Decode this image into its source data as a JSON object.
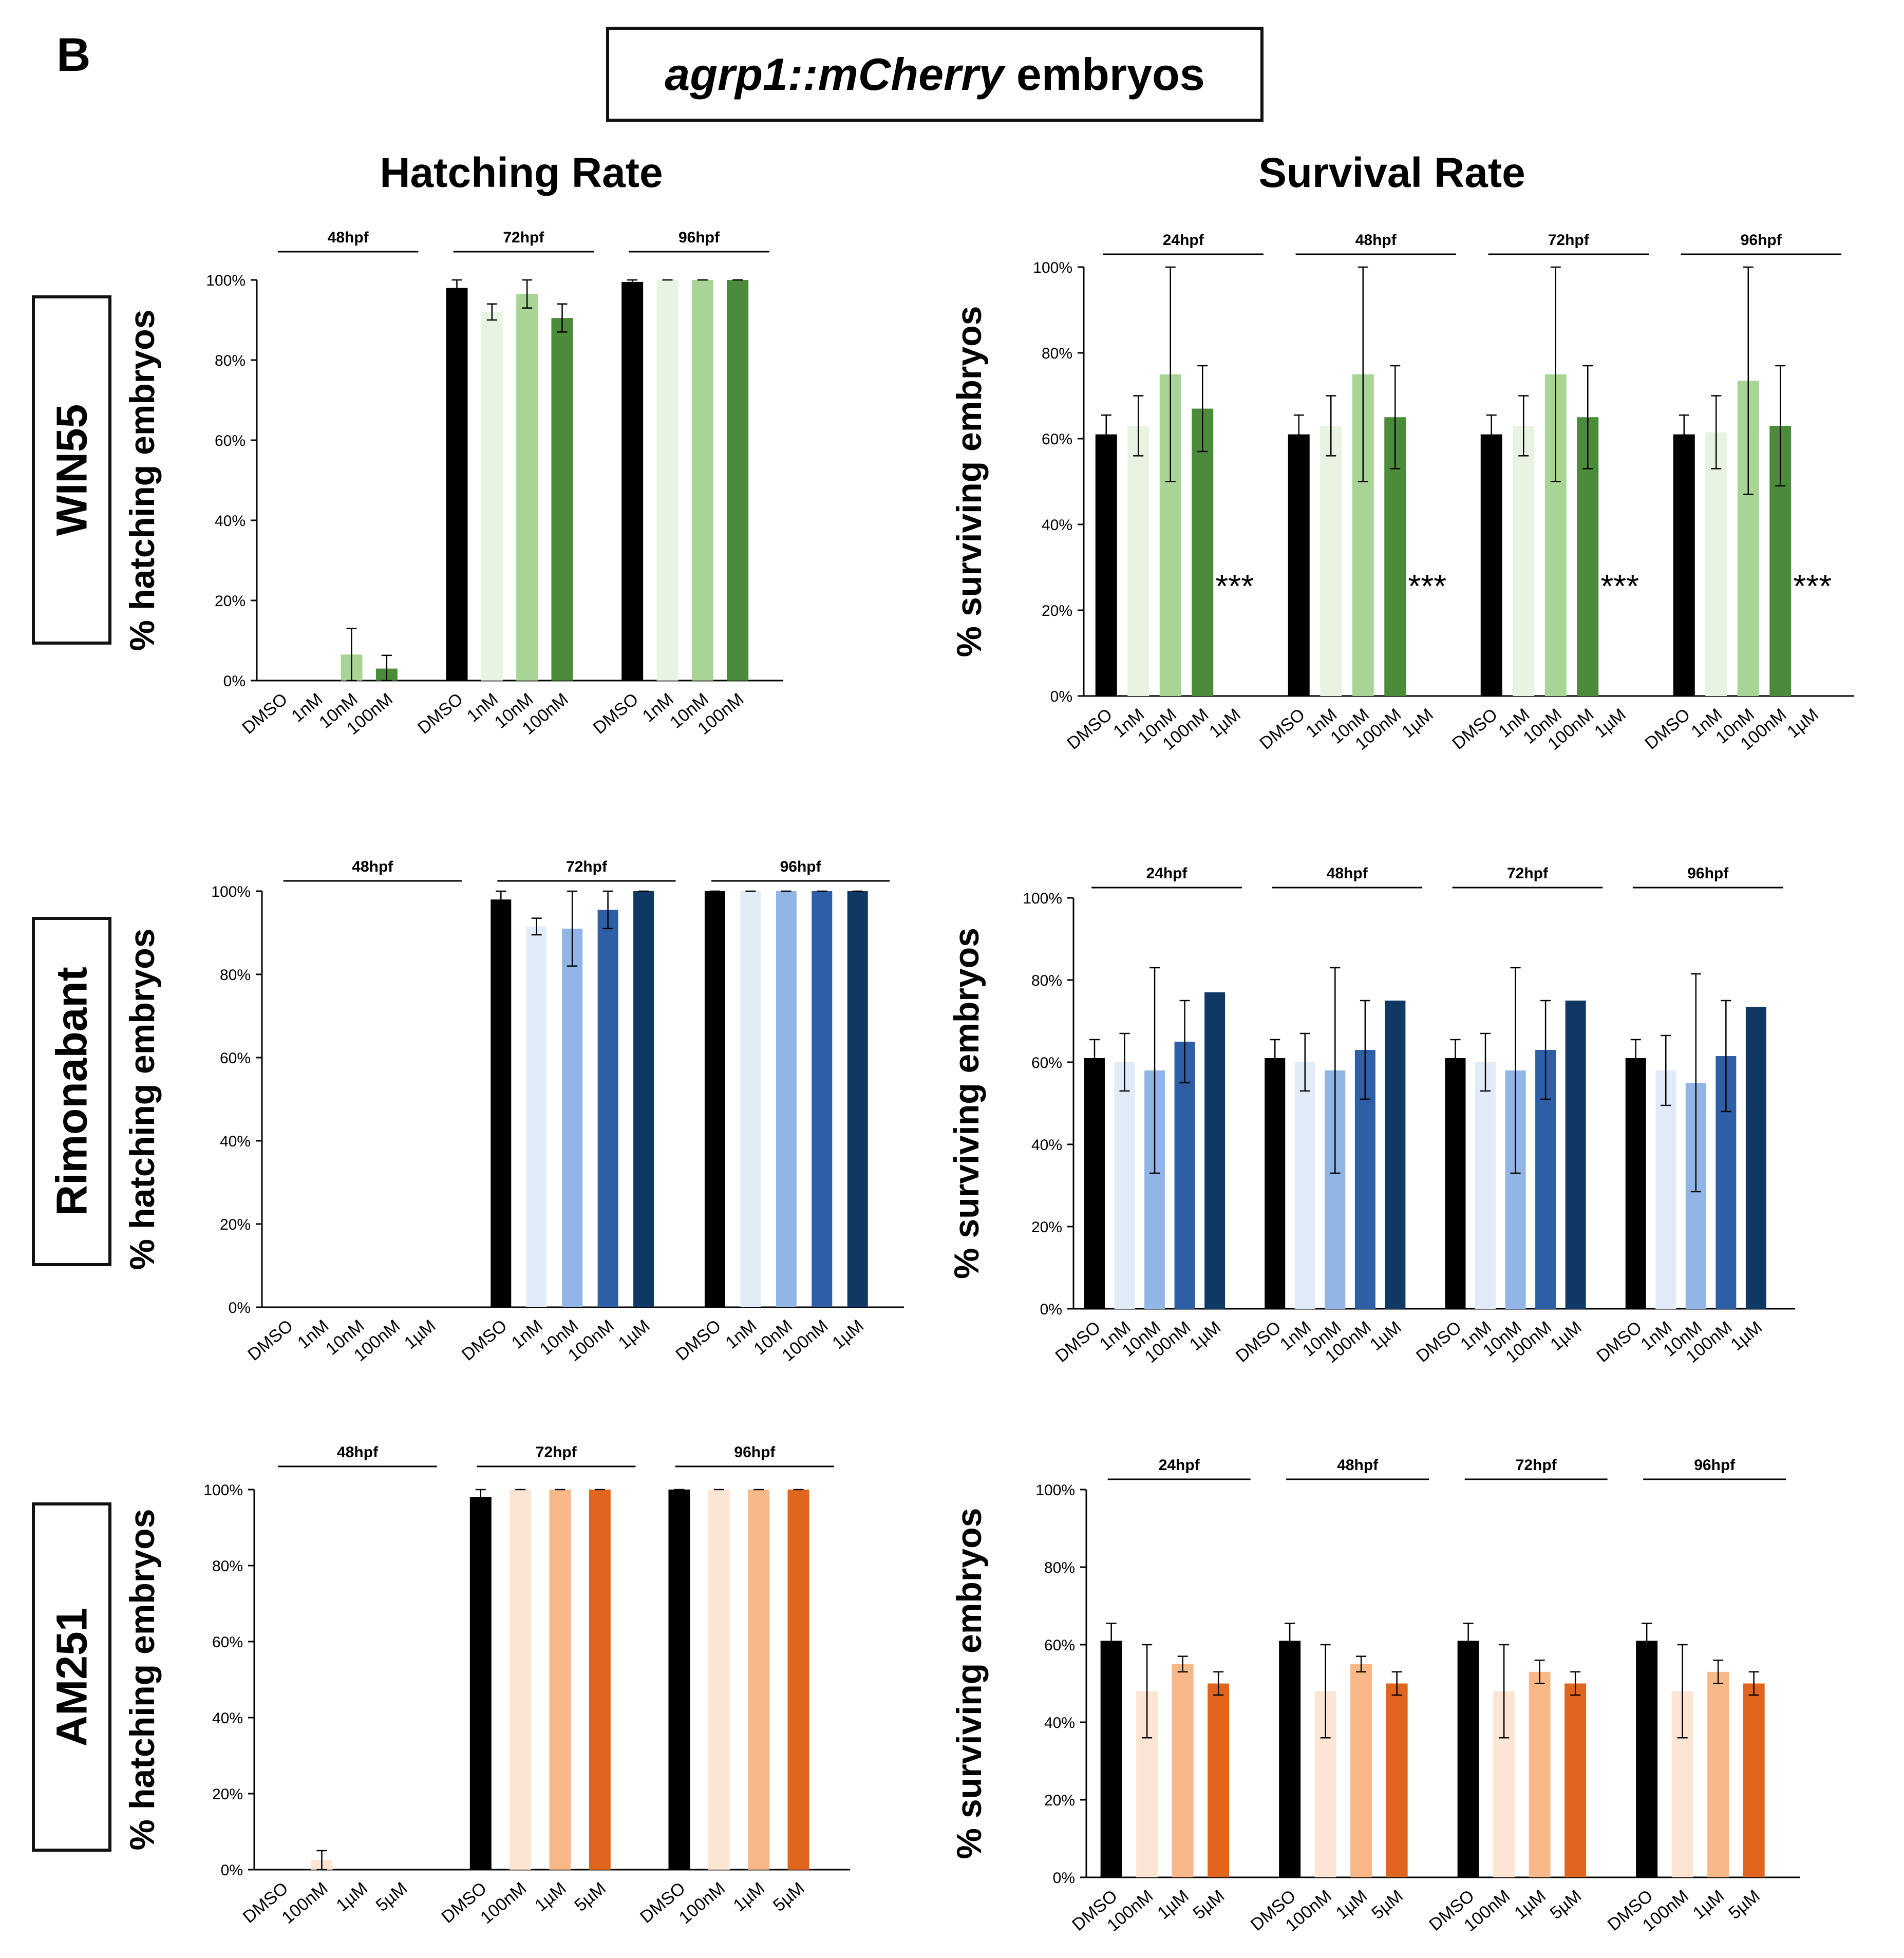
{
  "panel_letter": "B",
  "figure_title": {
    "italic": "agrp1::mCherry",
    "rest": " embryos"
  },
  "column_titles": {
    "hatching": "Hatching Rate",
    "survival": "Survival Rate"
  },
  "row_labels": {
    "win55": "WIN55",
    "rimonabant": "Rimonabant",
    "am251": "AM251"
  },
  "colors": {
    "control": "#000000",
    "green": [
      "#e8f3e2",
      "#a8d596",
      "#4c8a3c"
    ],
    "blue": [
      "#e2ebf8",
      "#91b5e4",
      "#2d5ea6",
      "#0f3865"
    ],
    "orange": [
      "#fde5d3",
      "#f8b887",
      "#e0661f"
    ]
  },
  "chart_data": [
    {
      "id": "win55-hatching",
      "type": "bar",
      "ylabel": "% hatching embryos",
      "ylim": [
        0,
        100
      ],
      "ytick_labels": [
        "0%",
        "20%",
        "40%",
        "60%",
        "80%",
        "100%"
      ],
      "categories": [
        "DMSO",
        "1nM",
        "10nM",
        "100nM"
      ],
      "groups": [
        {
          "label": "48hpf",
          "values": [
            0,
            0,
            6.5,
            3
          ],
          "errors": [
            0,
            0,
            6.5,
            3.3
          ]
        },
        {
          "label": "72hpf",
          "values": [
            98,
            92,
            96.5,
            90.5
          ],
          "errors": [
            2,
            2,
            3.5,
            3.5
          ]
        },
        {
          "label": "96hpf",
          "values": [
            99.5,
            100,
            100,
            100
          ],
          "errors": [
            0.5,
            0,
            0,
            0
          ]
        }
      ],
      "annotations": []
    },
    {
      "id": "win55-survival",
      "type": "bar",
      "ylabel": "% surviving embryos",
      "ylim": [
        0,
        100
      ],
      "ytick_labels": [
        "0%",
        "20%",
        "40%",
        "60%",
        "80%",
        "100%"
      ],
      "categories": [
        "DMSO",
        "1nM",
        "10nM",
        "100nM",
        "1µM"
      ],
      "groups": [
        {
          "label": "24hpf",
          "values": [
            61,
            63,
            75,
            67,
            0
          ],
          "errors": [
            4.5,
            7,
            25,
            10,
            0
          ]
        },
        {
          "label": "48hpf",
          "values": [
            61,
            63,
            75,
            65,
            0
          ],
          "errors": [
            4.5,
            7,
            25,
            12,
            0
          ]
        },
        {
          "label": "72hpf",
          "values": [
            61,
            63,
            75,
            65,
            0
          ],
          "errors": [
            4.5,
            7,
            25,
            12,
            0
          ]
        },
        {
          "label": "96hpf",
          "values": [
            61,
            61.5,
            73.5,
            63,
            0
          ],
          "errors": [
            4.5,
            8.5,
            26.5,
            14,
            0
          ]
        }
      ],
      "annotations": [
        "***",
        "***",
        "***",
        "***"
      ]
    },
    {
      "id": "rimonabant-hatching",
      "type": "bar",
      "ylabel": "% hatching embryos",
      "ylim": [
        0,
        100
      ],
      "ytick_labels": [
        "0%",
        "20%",
        "40%",
        "60%",
        "80%",
        "100%"
      ],
      "categories": [
        "DMSO",
        "1nM",
        "10nM",
        "100nM",
        "1µM"
      ],
      "groups": [
        {
          "label": "48hpf",
          "values": [
            0,
            0,
            0,
            0,
            0
          ],
          "errors": [
            0,
            0,
            0,
            0,
            0
          ]
        },
        {
          "label": "72hpf",
          "values": [
            98,
            91.5,
            91,
            95.5,
            100
          ],
          "errors": [
            2,
            2,
            9,
            4.5,
            0
          ]
        },
        {
          "label": "96hpf",
          "values": [
            100,
            100,
            100,
            100,
            100
          ],
          "errors": [
            0,
            0,
            0,
            0,
            0
          ]
        }
      ],
      "annotations": []
    },
    {
      "id": "rimonabant-survival",
      "type": "bar",
      "ylabel": "% surviving embryos",
      "ylim": [
        0,
        100
      ],
      "ytick_labels": [
        "0%",
        "20%",
        "40%",
        "60%",
        "80%",
        "100%"
      ],
      "categories": [
        "DMSO",
        "1nM",
        "10nM",
        "100nM",
        "1µM"
      ],
      "groups": [
        {
          "label": "24hpf",
          "values": [
            61,
            60,
            58,
            65,
            77
          ],
          "errors": [
            4.5,
            7,
            25,
            10,
            0
          ]
        },
        {
          "label": "48hpf",
          "values": [
            61,
            60,
            58,
            63,
            75
          ],
          "errors": [
            4.5,
            7,
            25,
            12,
            0
          ]
        },
        {
          "label": "72hpf",
          "values": [
            61,
            60,
            58,
            63,
            75
          ],
          "errors": [
            4.5,
            7,
            25,
            12,
            0
          ]
        },
        {
          "label": "96hpf",
          "values": [
            61,
            58,
            55,
            61.5,
            73.5
          ],
          "errors": [
            4.5,
            8.5,
            26.5,
            13.5,
            0
          ]
        }
      ],
      "annotations": []
    },
    {
      "id": "am251-hatching",
      "type": "bar",
      "ylabel": "% hatching embryos",
      "ylim": [
        0,
        100
      ],
      "ytick_labels": [
        "0%",
        "20%",
        "40%",
        "60%",
        "80%",
        "100%"
      ],
      "categories": [
        "DMSO",
        "100nM",
        "1µM",
        "5µM"
      ],
      "groups": [
        {
          "label": "48hpf",
          "values": [
            0,
            2.5,
            0,
            0
          ],
          "errors": [
            0,
            2.5,
            0,
            0
          ]
        },
        {
          "label": "72hpf",
          "values": [
            98,
            100,
            100,
            100
          ],
          "errors": [
            2,
            0,
            0,
            0
          ]
        },
        {
          "label": "96hpf",
          "values": [
            100,
            100,
            100,
            100
          ],
          "errors": [
            0,
            0,
            0,
            0
          ]
        }
      ],
      "annotations": []
    },
    {
      "id": "am251-survival",
      "type": "bar",
      "ylabel": "% surviving embryos",
      "ylim": [
        0,
        100
      ],
      "ytick_labels": [
        "0%",
        "20%",
        "40%",
        "60%",
        "80%",
        "100%"
      ],
      "categories": [
        "DMSO",
        "100nM",
        "1µM",
        "5µM"
      ],
      "groups": [
        {
          "label": "24hpf",
          "values": [
            61,
            48,
            55,
            50
          ],
          "errors": [
            4.5,
            12,
            2,
            3
          ]
        },
        {
          "label": "48hpf",
          "values": [
            61,
            48,
            55,
            50
          ],
          "errors": [
            4.5,
            12,
            2,
            3
          ]
        },
        {
          "label": "72hpf",
          "values": [
            61,
            48,
            53,
            50
          ],
          "errors": [
            4.5,
            12,
            3,
            3
          ]
        },
        {
          "label": "96hpf",
          "values": [
            61,
            48,
            53,
            50
          ],
          "errors": [
            4.5,
            12,
            3,
            3
          ]
        }
      ],
      "annotations": []
    }
  ]
}
